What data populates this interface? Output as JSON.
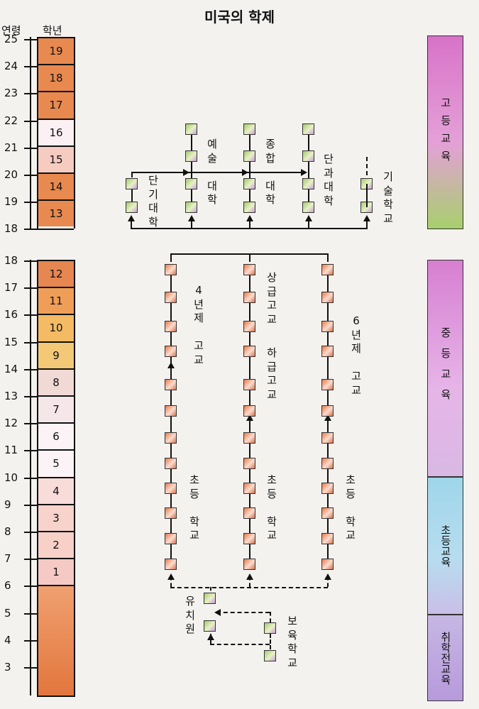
{
  "title": "미국의 학제",
  "header": {
    "age_label": "연령",
    "grade_label": "학년"
  },
  "ages_upper": [
    "25",
    "24",
    "23",
    "22",
    "21",
    "20",
    "19",
    "18"
  ],
  "ages_lower": [
    "18",
    "17",
    "16",
    "15",
    "14",
    "13",
    "12",
    "11",
    "10",
    "9",
    "8",
    "7",
    "6",
    "5",
    "4",
    "3"
  ],
  "grades_upper": [
    "19",
    "18",
    "17",
    "16",
    "15",
    "14",
    "13"
  ],
  "grades_lower": [
    "12",
    "11",
    "10",
    "9",
    "8",
    "7",
    "6",
    "5",
    "4",
    "3",
    "2",
    "1"
  ],
  "bands": {
    "higher": "고등교육",
    "secondary": "중등교육",
    "elementary": "초등교육",
    "preschool": "취학전교육"
  },
  "labels": {
    "junior_college": "단기대학",
    "arts_college": "예술대학",
    "university": "종합대학",
    "single_college": "단과대학",
    "tech_school": "기술학교",
    "four_year_high": "4년제고교",
    "senior_high": "상급고교",
    "junior_high": "하급고교",
    "six_year_high": "6년제고교",
    "elementary_school": "초등학교",
    "kindergarten": "유치원",
    "nursery_school": "보육학교"
  },
  "colors": {
    "grade_orange": "#e8844f",
    "grade_yellow": "#f0b060",
    "grade_white": "#fbf3f6",
    "higher_band": "#d87ad0",
    "secondary_band": "#d0a0e0",
    "elementary_band": "#a8d8ea",
    "preschool_band": "#c0a8dc"
  }
}
